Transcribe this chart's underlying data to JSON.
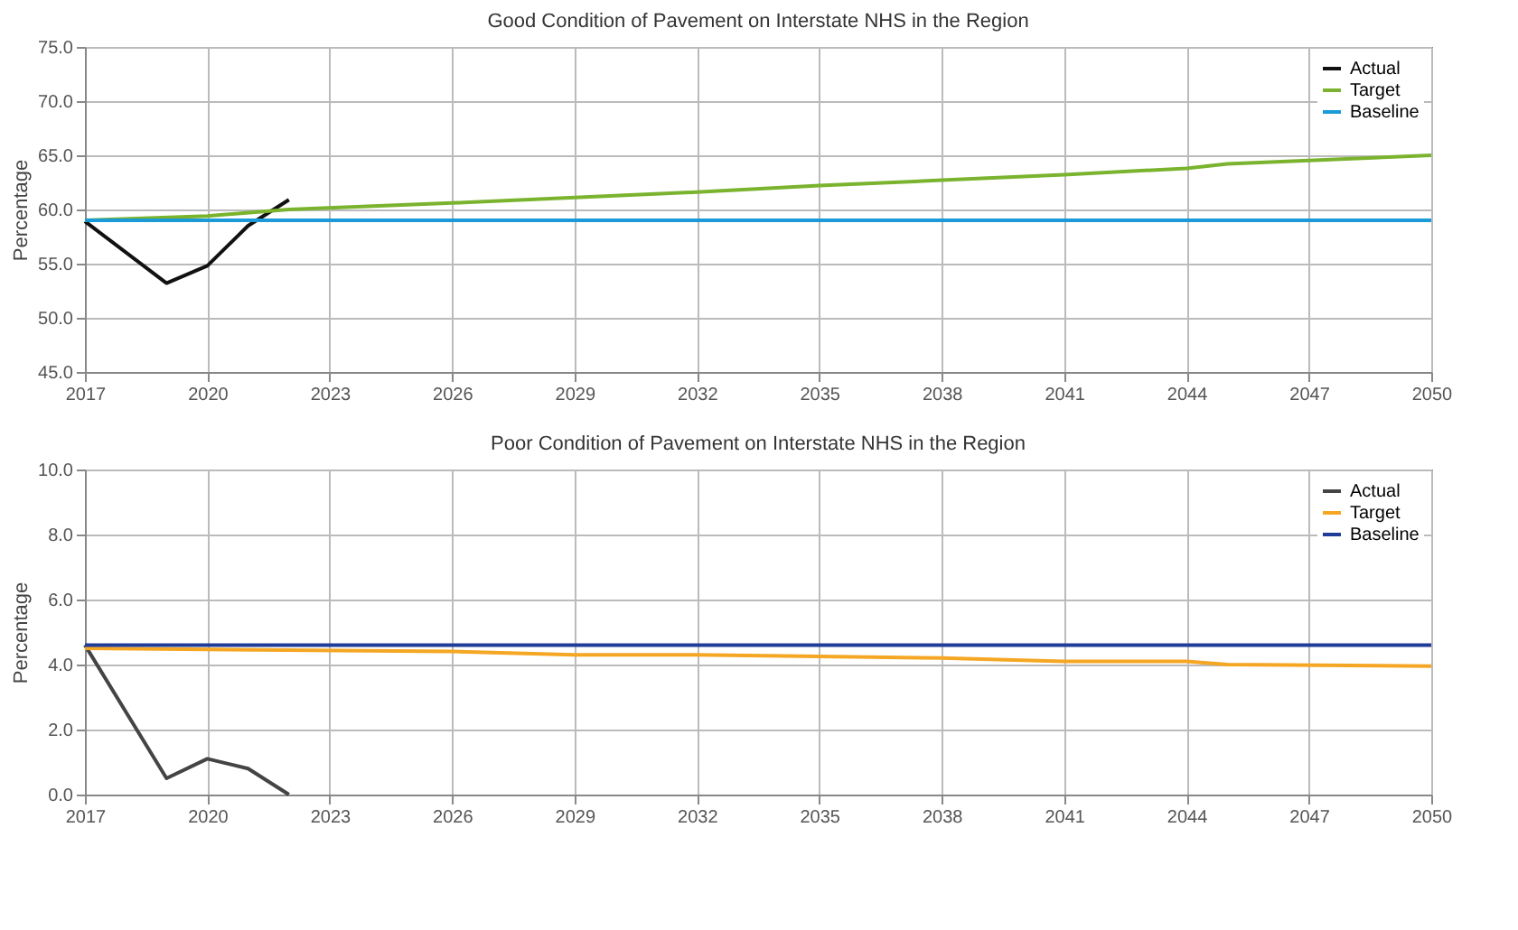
{
  "chart_data": [
    {
      "type": "line",
      "title": "Good Condition of Pavement on Interstate NHS in the Region",
      "ylabel": "Percentage",
      "xlim": [
        2017,
        2050
      ],
      "xticks": [
        2017,
        2020,
        2023,
        2026,
        2029,
        2032,
        2035,
        2038,
        2041,
        2044,
        2047,
        2050
      ],
      "ylim": [
        45,
        75
      ],
      "yticks": [
        {
          "value": 45,
          "label": "45.0"
        },
        {
          "value": 50,
          "label": "50.0"
        },
        {
          "value": 55,
          "label": "55.0"
        },
        {
          "value": 60,
          "label": "60.0"
        },
        {
          "value": 65,
          "label": "65.0"
        },
        {
          "value": 70,
          "label": "70.0"
        },
        {
          "value": 75,
          "label": "75.0"
        }
      ],
      "grid": true,
      "legend": "top right",
      "series": [
        {
          "name": "Actual",
          "color": "#111111",
          "x": [
            2017,
            2019,
            2020,
            2021,
            2022
          ],
          "values": [
            58.9,
            53.2,
            54.8,
            58.5,
            60.9
          ]
        },
        {
          "name": "Target",
          "color": "#7ab32e",
          "x": [
            2017,
            2020,
            2022,
            2026,
            2032,
            2035,
            2038,
            2041,
            2044,
            2045,
            2050
          ],
          "values": [
            59.0,
            59.4,
            60.0,
            60.6,
            61.6,
            62.2,
            62.7,
            63.2,
            63.8,
            64.2,
            65.0
          ]
        },
        {
          "name": "Baseline",
          "color": "#1a9ad6",
          "x": [
            2017,
            2050
          ],
          "values": [
            59.0,
            59.0
          ]
        }
      ]
    },
    {
      "type": "line",
      "title": "Poor Condition of Pavement on Interstate NHS in the Region",
      "ylabel": "Percentage",
      "xlim": [
        2017,
        2050
      ],
      "xticks": [
        2017,
        2020,
        2023,
        2026,
        2029,
        2032,
        2035,
        2038,
        2041,
        2044,
        2047,
        2050
      ],
      "ylim": [
        0,
        10
      ],
      "yticks": [
        {
          "value": 0,
          "label": "0.0"
        },
        {
          "value": 2,
          "label": "2.0"
        },
        {
          "value": 4,
          "label": "4.0"
        },
        {
          "value": 6,
          "label": "6.0"
        },
        {
          "value": 8,
          "label": "8.0"
        },
        {
          "value": 10,
          "label": "10.0"
        }
      ],
      "grid": true,
      "legend": "top right",
      "series": [
        {
          "name": "Actual",
          "color": "#444444",
          "x": [
            2017,
            2019,
            2020,
            2021,
            2022
          ],
          "values": [
            4.6,
            0.5,
            1.1,
            0.8,
            0.0
          ]
        },
        {
          "name": "Target",
          "color": "#f5a623",
          "x": [
            2017,
            2026,
            2029,
            2032,
            2035,
            2038,
            2041,
            2044,
            2045,
            2050
          ],
          "values": [
            4.5,
            4.4,
            4.3,
            4.3,
            4.25,
            4.2,
            4.1,
            4.1,
            4.0,
            3.95
          ]
        },
        {
          "name": "Baseline",
          "color": "#1f3c99",
          "x": [
            2017,
            2050
          ],
          "values": [
            4.6,
            4.6
          ]
        }
      ]
    }
  ]
}
